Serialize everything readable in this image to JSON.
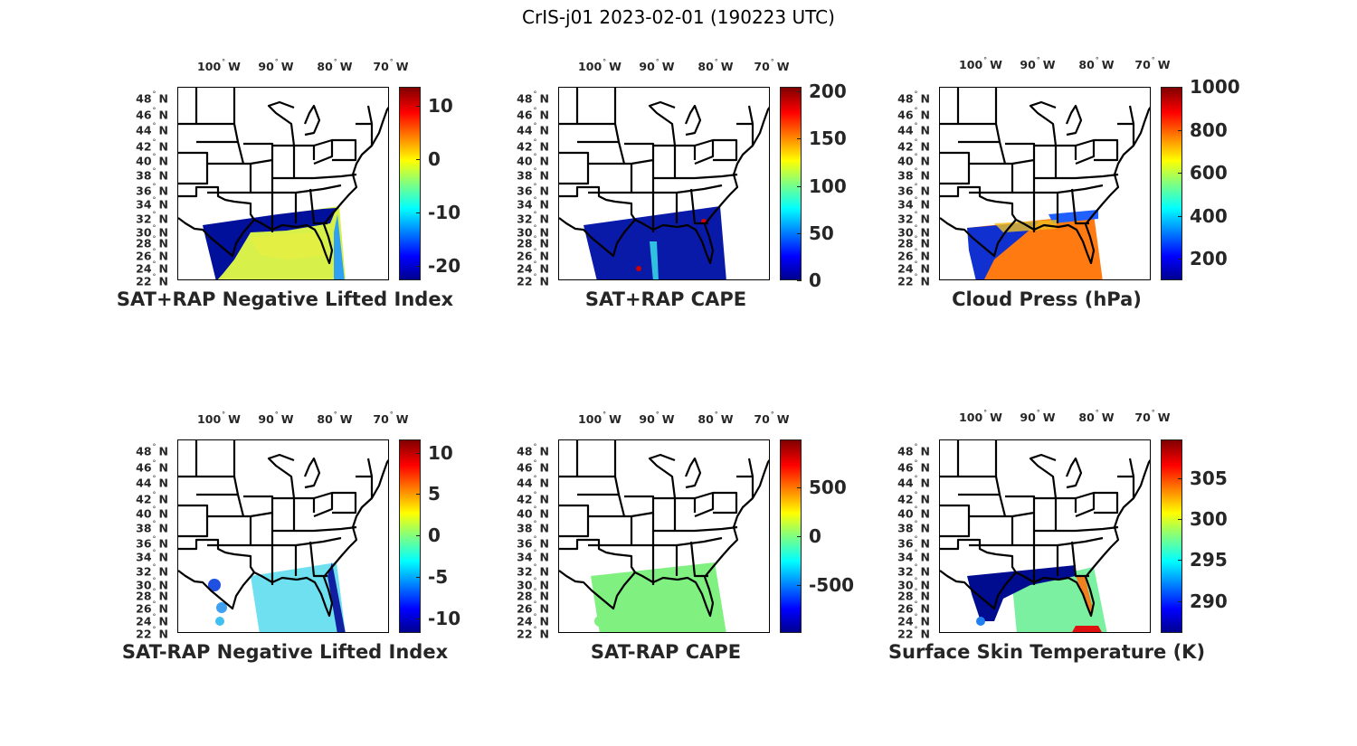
{
  "figure_title": "CrIS-j01 2023-02-01 (190223 UTC)",
  "lon_labels": [
    "100",
    "90",
    "80",
    "70"
  ],
  "lon_suffix": "W",
  "lat_labels": [
    "48",
    "46",
    "44",
    "42",
    "40",
    "38",
    "36",
    "34",
    "32",
    "30",
    "28",
    "26",
    "24",
    "22"
  ],
  "lat_suffix": "N",
  "panels": [
    {
      "title": "SAT+RAP Negative Lifted Index",
      "cbar_range": [
        -22.7,
        13.6
      ],
      "ticks": [
        {
          "v": 10,
          "label": "10"
        },
        {
          "v": 0,
          "label": "0"
        },
        {
          "v": -10,
          "label": "-10"
        },
        {
          "v": -20,
          "label": "-20"
        }
      ]
    },
    {
      "title": "SAT+RAP CAPE",
      "cbar_range": [
        0,
        205
      ],
      "ticks": [
        {
          "v": 200,
          "label": "200"
        },
        {
          "v": 150,
          "label": "150"
        },
        {
          "v": 100,
          "label": "100"
        },
        {
          "v": 50,
          "label": "50"
        },
        {
          "v": 0,
          "label": "0"
        }
      ]
    },
    {
      "title": "Cloud Press (hPa)",
      "cbar_range": [
        99,
        1000
      ],
      "ticks": [
        {
          "v": 1000,
          "label": "1000"
        },
        {
          "v": 800,
          "label": "800"
        },
        {
          "v": 600,
          "label": "600"
        },
        {
          "v": 400,
          "label": "400"
        },
        {
          "v": 200,
          "label": "200"
        }
      ]
    },
    {
      "title": "SAT-RAP Negative Lifted Index",
      "cbar_range": [
        -11.75,
        11.6
      ],
      "ticks": [
        {
          "v": 10,
          "label": "10"
        },
        {
          "v": 5,
          "label": "5"
        },
        {
          "v": 0,
          "label": "0"
        },
        {
          "v": -5,
          "label": "-5"
        },
        {
          "v": -10,
          "label": "-10"
        }
      ]
    },
    {
      "title": "SAT-RAP CAPE",
      "cbar_range": [
        -991,
        991
      ],
      "ticks": [
        {
          "v": 500,
          "label": "500"
        },
        {
          "v": 0,
          "label": "0"
        },
        {
          "v": -500,
          "label": "-500"
        }
      ]
    },
    {
      "title": "Surface Skin Temperature (K)",
      "cbar_range": [
        286.1,
        309.7
      ],
      "ticks": [
        {
          "v": 305,
          "label": "305"
        },
        {
          "v": 300,
          "label": "300"
        },
        {
          "v": 295,
          "label": "295"
        },
        {
          "v": 290,
          "label": "290"
        }
      ]
    }
  ]
}
